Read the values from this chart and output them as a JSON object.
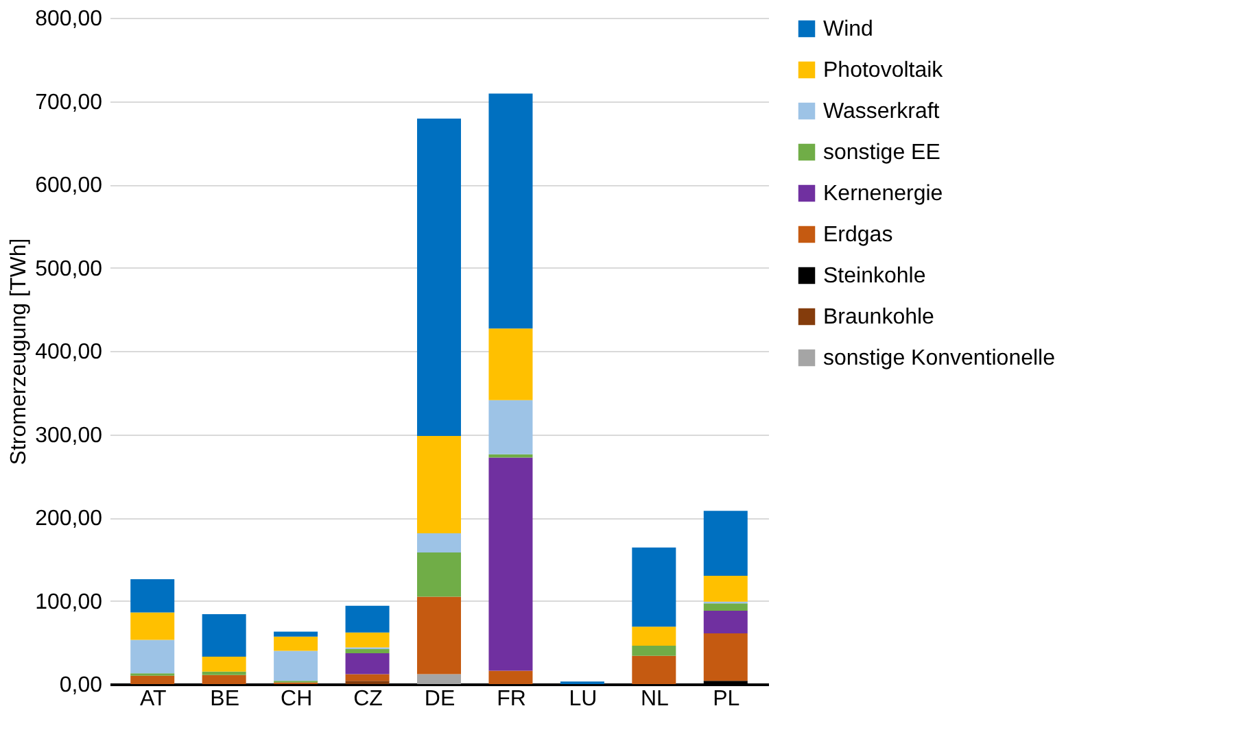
{
  "chart_data": {
    "type": "bar",
    "stacked": true,
    "ylabel": "Stromerzeugung [TWh]",
    "categories": [
      "AT",
      "BE",
      "CH",
      "CZ",
      "DE",
      "FR",
      "LU",
      "NL",
      "PL"
    ],
    "series": [
      {
        "name": "sonstige Konventionelle",
        "color": "#a5a5a5",
        "values": [
          null,
          null,
          null,
          null,
          12,
          null,
          null,
          null,
          null
        ]
      },
      {
        "name": "Braunkohle",
        "color": "#843c0c",
        "values": [
          null,
          null,
          null,
          4,
          null,
          null,
          null,
          null,
          null
        ]
      },
      {
        "name": "Steinkohle",
        "color": "#000000",
        "values": [
          null,
          null,
          null,
          null,
          null,
          null,
          null,
          null,
          4
        ]
      },
      {
        "name": "Erdgas",
        "color": "#c55a11",
        "values": [
          10,
          11,
          2,
          8,
          93,
          16,
          null,
          34,
          57
        ]
      },
      {
        "name": "Kernenergie",
        "color": "#7030a0",
        "values": [
          null,
          null,
          null,
          25,
          null,
          256,
          null,
          null,
          27
        ]
      },
      {
        "name": "sonstige EE",
        "color": "#70ad47",
        "values": [
          3,
          4,
          2,
          5,
          53,
          4,
          null,
          12,
          9
        ]
      },
      {
        "name": "Wasserkraft",
        "color": "#9dc3e6",
        "values": [
          40,
          null,
          36,
          2,
          23,
          65,
          null,
          null,
          2
        ]
      },
      {
        "name": "Photovoltaik",
        "color": "#ffc000",
        "values": [
          33,
          18,
          17,
          18,
          117,
          86,
          null,
          23,
          31
        ]
      },
      {
        "name": "Wind",
        "color": "#0070c0",
        "values": [
          40,
          51,
          6,
          32,
          381,
          282,
          3,
          95,
          78
        ]
      }
    ],
    "ylim": [
      0,
      800
    ],
    "yticks": [
      {
        "value": 0,
        "label": "0,00"
      },
      {
        "value": 100,
        "label": "100,00"
      },
      {
        "value": 200,
        "label": "200,00"
      },
      {
        "value": 300,
        "label": "300,00"
      },
      {
        "value": 400,
        "label": "400,00"
      },
      {
        "value": 500,
        "label": "500,00"
      },
      {
        "value": 600,
        "label": "600,00"
      },
      {
        "value": 700,
        "label": "700,00"
      },
      {
        "value": 800,
        "label": "800,00"
      }
    ],
    "grid": "y",
    "legend": "right"
  }
}
